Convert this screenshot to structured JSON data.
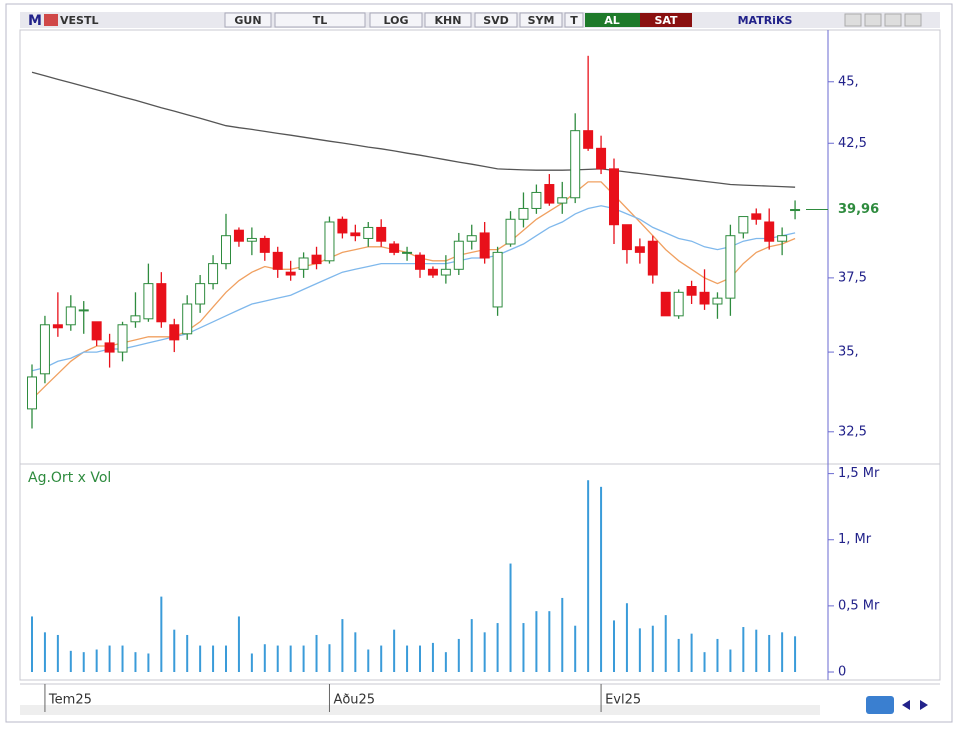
{
  "toolbar": {
    "logo": "M",
    "symbol": "VESTL",
    "buttons": [
      "GUN",
      "TL",
      "LOG",
      "KHN",
      "SVD",
      "SYM",
      "T"
    ],
    "buy": "AL",
    "sell": "SAT",
    "brand": "MATRiKS"
  },
  "chart_data": [
    {
      "type": "candlestick",
      "log_scale": true,
      "categories": [
        null,
        "Tem25",
        null,
        null,
        null,
        null,
        null,
        null,
        null,
        null,
        null,
        null,
        null,
        null,
        null,
        null,
        null,
        null,
        null,
        null,
        null,
        null,
        null,
        "Aðu25",
        null,
        null,
        null,
        null,
        null,
        null,
        null,
        null,
        null,
        null,
        null,
        null,
        null,
        null,
        null,
        null,
        null,
        null,
        null,
        null,
        "Evl25",
        null,
        null,
        null,
        null,
        null,
        null,
        null,
        null,
        null,
        null,
        null,
        null,
        null,
        null,
        null
      ],
      "open": [
        33.2,
        34.3,
        35.9,
        35.9,
        36.4,
        36.0,
        35.3,
        35.0,
        36.0,
        36.1,
        37.3,
        35.9,
        35.6,
        36.6,
        37.3,
        38.0,
        39.2,
        38.8,
        38.9,
        38.4,
        37.7,
        37.8,
        38.3,
        38.1,
        39.6,
        39.1,
        38.9,
        39.3,
        38.7,
        38.4,
        38.3,
        37.8,
        37.6,
        37.8,
        38.8,
        39.1,
        36.5,
        38.7,
        39.6,
        40.0,
        40.9,
        40.2,
        40.4,
        43.0,
        42.3,
        41.5,
        39.4,
        38.6,
        38.8,
        37.0,
        36.2,
        37.2,
        37.0,
        36.6,
        36.8,
        39.1,
        39.8,
        39.5,
        38.8,
        39.96
      ],
      "high": [
        34.6,
        36.2,
        37.0,
        36.9,
        36.7,
        36.0,
        35.6,
        36.0,
        37.0,
        38.0,
        37.7,
        36.1,
        36.9,
        37.6,
        38.3,
        39.8,
        39.3,
        39.3,
        39.0,
        38.6,
        38.1,
        38.4,
        38.6,
        39.7,
        39.7,
        39.4,
        39.5,
        39.6,
        38.8,
        38.6,
        38.4,
        37.9,
        38.3,
        39.1,
        39.4,
        39.5,
        38.6,
        39.9,
        40.6,
        40.9,
        41.3,
        41.0,
        43.7,
        46.1,
        42.8,
        41.9,
        39.4,
        38.9,
        39.0,
        37.0,
        37.1,
        37.4,
        37.8,
        37.0,
        39.4,
        39.7,
        40.0,
        40.0,
        39.3,
        40.3
      ],
      "low": [
        32.6,
        34.0,
        35.5,
        35.7,
        35.6,
        35.2,
        34.5,
        34.7,
        35.8,
        36.0,
        35.8,
        35.0,
        35.4,
        36.3,
        37.1,
        37.8,
        38.6,
        38.3,
        38.1,
        37.5,
        37.4,
        37.5,
        37.8,
        38.0,
        38.9,
        38.8,
        38.6,
        38.6,
        38.3,
        38.1,
        37.5,
        37.5,
        37.3,
        37.6,
        38.5,
        38.0,
        36.2,
        38.6,
        39.3,
        39.8,
        40.1,
        39.8,
        40.2,
        42.2,
        41.3,
        38.7,
        38.0,
        38.0,
        37.3,
        36.2,
        36.1,
        36.6,
        36.4,
        36.1,
        36.2,
        38.9,
        39.4,
        38.5,
        38.3,
        39.6
      ],
      "close": [
        34.2,
        35.9,
        35.8,
        36.5,
        36.4,
        35.4,
        35.0,
        35.9,
        36.2,
        37.3,
        36.0,
        35.4,
        36.6,
        37.3,
        38.0,
        39.0,
        38.8,
        38.9,
        38.4,
        37.8,
        37.6,
        38.2,
        38.0,
        39.5,
        39.1,
        39.0,
        39.3,
        38.8,
        38.4,
        38.4,
        37.8,
        37.6,
        37.8,
        38.8,
        39.0,
        38.2,
        38.4,
        39.6,
        40.0,
        40.6,
        40.2,
        40.4,
        43.0,
        42.3,
        41.5,
        39.4,
        38.5,
        38.4,
        37.6,
        36.2,
        37.0,
        36.9,
        36.6,
        36.8,
        39.0,
        39.7,
        39.6,
        38.8,
        39.0,
        39.96
      ],
      "up_color": "#2e8b3e",
      "down_color": "#e8101a",
      "overlays": [
        {
          "color": "#555555",
          "values": [
            45.4,
            45.25,
            45.1,
            44.96,
            44.81,
            44.67,
            44.52,
            44.37,
            44.23,
            44.08,
            43.93,
            43.79,
            43.64,
            43.5,
            43.35,
            43.2,
            43.12,
            43.05,
            42.97,
            42.89,
            42.82,
            42.74,
            42.66,
            42.58,
            42.51,
            42.43,
            42.35,
            42.28,
            42.2,
            42.11,
            42.03,
            41.94,
            41.85,
            41.76,
            41.68,
            41.59,
            41.5,
            41.48,
            41.46,
            41.45,
            41.45,
            41.45,
            41.46,
            41.48,
            41.5,
            41.44,
            41.38,
            41.32,
            41.26,
            41.2,
            41.14,
            41.08,
            41.02,
            40.96,
            40.9,
            40.88,
            40.86,
            40.84,
            40.82,
            40.8
          ]
        },
        {
          "color": "#f0a060",
          "values": [
            33.5,
            33.9,
            34.3,
            34.7,
            35.0,
            35.2,
            35.2,
            35.3,
            35.4,
            35.5,
            35.5,
            35.5,
            35.7,
            36.0,
            36.5,
            37.0,
            37.4,
            37.7,
            37.9,
            37.8,
            37.8,
            37.9,
            38.0,
            38.2,
            38.4,
            38.5,
            38.6,
            38.6,
            38.5,
            38.4,
            38.2,
            38.1,
            38.1,
            38.3,
            38.4,
            38.5,
            38.5,
            38.8,
            39.2,
            39.6,
            39.9,
            40.2,
            40.6,
            41.0,
            41.0,
            40.5,
            40.0,
            39.5,
            39.0,
            38.5,
            38.1,
            37.8,
            37.5,
            37.3,
            37.5,
            38.0,
            38.4,
            38.6,
            38.7,
            38.9
          ]
        },
        {
          "color": "#7fb8ec",
          "values": [
            34.4,
            34.5,
            34.7,
            34.8,
            35.0,
            35.0,
            35.1,
            35.1,
            35.2,
            35.3,
            35.4,
            35.5,
            35.6,
            35.8,
            36.0,
            36.2,
            36.4,
            36.6,
            36.7,
            36.8,
            36.9,
            37.1,
            37.3,
            37.5,
            37.7,
            37.8,
            37.9,
            38.0,
            38.0,
            38.0,
            38.0,
            38.0,
            38.0,
            38.1,
            38.2,
            38.2,
            38.3,
            38.5,
            38.7,
            39.0,
            39.3,
            39.5,
            39.8,
            40.0,
            40.1,
            40.0,
            39.8,
            39.6,
            39.3,
            39.1,
            38.9,
            38.8,
            38.6,
            38.5,
            38.6,
            38.8,
            38.9,
            38.9,
            39.0,
            39.1
          ]
        }
      ],
      "ylim": [
        31.6,
        47.0
      ],
      "yticks": [
        {
          "value": 32.5,
          "label": "32,5"
        },
        {
          "value": 35,
          "label": "35,"
        },
        {
          "value": 37.5,
          "label": "37,5"
        },
        {
          "value": 42.5,
          "label": "42,5"
        },
        {
          "value": 45,
          "label": "45,"
        }
      ],
      "last_price": {
        "value": 39.96,
        "label": "39,96"
      },
      "last_price_color": "#2e8b3e"
    },
    {
      "type": "bar",
      "title": "Ag.Ort x Vol",
      "color": "#3a9bd9",
      "values": [
        0.42,
        0.3,
        0.28,
        0.16,
        0.15,
        0.17,
        0.2,
        0.2,
        0.15,
        0.14,
        0.57,
        0.32,
        0.28,
        0.2,
        0.2,
        0.2,
        0.42,
        0.14,
        0.21,
        0.2,
        0.2,
        0.2,
        0.28,
        0.21,
        0.4,
        0.3,
        0.17,
        0.2,
        0.32,
        0.2,
        0.2,
        0.22,
        0.15,
        0.25,
        0.4,
        0.3,
        0.37,
        0.82,
        0.37,
        0.46,
        0.46,
        0.56,
        0.35,
        1.45,
        1.4,
        0.39,
        0.52,
        0.33,
        0.35,
        0.43,
        0.25,
        0.29,
        0.15,
        0.25,
        0.17,
        0.34,
        0.32,
        0.28,
        0.3,
        0.27
      ],
      "ylim": [
        0,
        1.55
      ],
      "yticks": [
        0,
        {
          "value": 0.5,
          "label": "0,5 Mr"
        },
        {
          "value": 1,
          "label": "1, Mr"
        },
        {
          "value": 1.5,
          "label": "1,5 Mr"
        }
      ]
    }
  ]
}
